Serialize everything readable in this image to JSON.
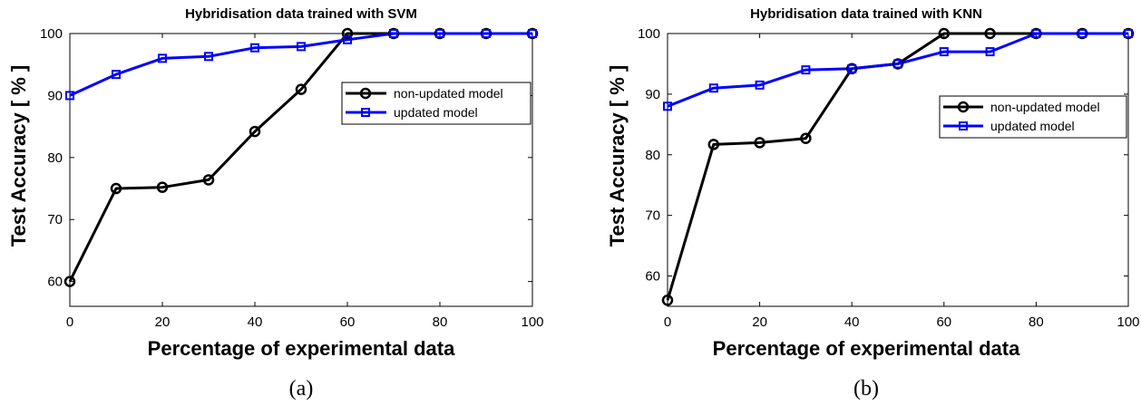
{
  "chart_data": [
    {
      "type": "line",
      "panel_label": "(a)",
      "title": "Hybridisation data trained with SVM",
      "xlabel": "Percentage of experimental data",
      "ylabel": "Test Accuracy [ % ]",
      "xlim": [
        0,
        100
      ],
      "ylim": [
        56,
        100
      ],
      "xticks": [
        "0",
        "20",
        "40",
        "60",
        "80",
        "100"
      ],
      "yticks": [
        "60",
        "70",
        "80",
        "90",
        "100"
      ],
      "legend_position": "upper-right",
      "grid": false,
      "series": [
        {
          "name": "non-updated model",
          "color": "#000000",
          "marker": "circle",
          "x": [
            0,
            10,
            20,
            30,
            40,
            50,
            60,
            70,
            80,
            90,
            100
          ],
          "y": [
            60,
            75,
            75.2,
            76.4,
            84.2,
            91,
            100,
            100,
            100,
            100,
            100
          ]
        },
        {
          "name": "updated model",
          "color": "#0000ff",
          "marker": "square",
          "x": [
            0,
            10,
            20,
            30,
            40,
            50,
            60,
            70,
            80,
            90,
            100
          ],
          "y": [
            90,
            93.4,
            96,
            96.3,
            97.7,
            97.9,
            99,
            100,
            100,
            100,
            100
          ]
        }
      ]
    },
    {
      "type": "line",
      "panel_label": "(b)",
      "title": "Hybridisation data trained with KNN",
      "xlabel": "Percentage of experimental data",
      "ylabel": "Test Accuracy [ % ]",
      "xlim": [
        0,
        100
      ],
      "ylim": [
        55,
        100
      ],
      "xticks": [
        "0",
        "20",
        "40",
        "60",
        "80",
        "100"
      ],
      "yticks": [
        "60",
        "70",
        "80",
        "90",
        "100"
      ],
      "legend_position": "upper-right",
      "grid": false,
      "series": [
        {
          "name": "non-updated model",
          "color": "#000000",
          "marker": "circle",
          "x": [
            0,
            10,
            20,
            30,
            40,
            50,
            60,
            70,
            80,
            90,
            100
          ],
          "y": [
            56,
            81.7,
            82,
            82.7,
            94.2,
            95,
            100,
            100,
            100,
            100,
            100
          ]
        },
        {
          "name": "updated model",
          "color": "#0000ff",
          "marker": "square",
          "x": [
            0,
            10,
            20,
            30,
            40,
            50,
            60,
            70,
            80,
            90,
            100
          ],
          "y": [
            88,
            91,
            91.5,
            94,
            94.2,
            95,
            97,
            97,
            100,
            100,
            100
          ]
        }
      ]
    }
  ]
}
